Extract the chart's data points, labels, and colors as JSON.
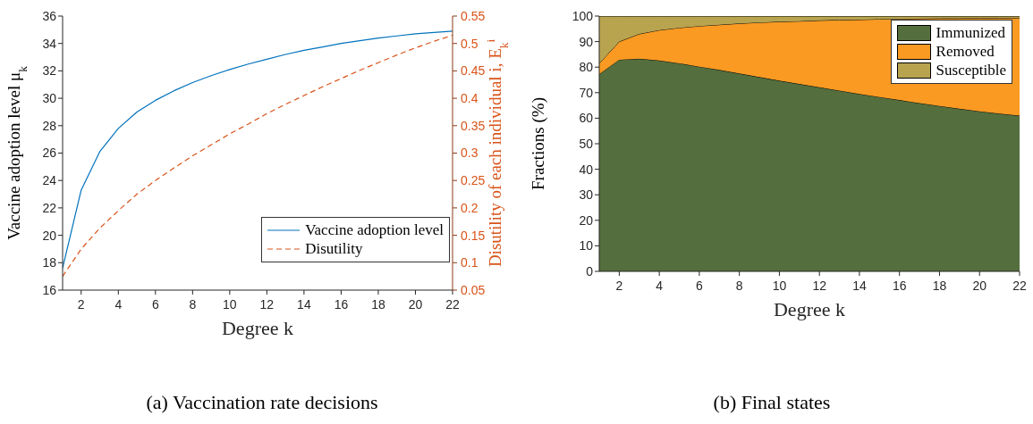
{
  "chart_data": [
    {
      "type": "line",
      "title": "(a) Vaccination rate decisions",
      "xlabel": "Degree k",
      "ylabel": "Vaccine adoption level μ$_{k}$",
      "y2label": "Disutility of each individual i, E$_{k}$$^{i}$",
      "x": [
        1,
        2,
        3,
        4,
        5,
        6,
        7,
        8,
        9,
        10,
        11,
        12,
        13,
        14,
        15,
        16,
        17,
        18,
        19,
        20,
        21,
        22
      ],
      "series": [
        {
          "name": "Vaccine adoption level",
          "color": "#0072bd",
          "line_style": "solid",
          "values": [
            17.6,
            23.3,
            26.1,
            27.8,
            29.0,
            29.85,
            30.55,
            31.15,
            31.65,
            32.1,
            32.5,
            32.85,
            33.2,
            33.5,
            33.75,
            34.0,
            34.2,
            34.4,
            34.55,
            34.7,
            34.8,
            34.9
          ]
        },
        {
          "name": "Disutility",
          "color": "#d95319",
          "line_style": "dashed",
          "axis": "y2",
          "values": [
            0.075,
            0.125,
            0.163,
            0.195,
            0.225,
            0.25,
            0.273,
            0.295,
            0.315,
            0.335,
            0.353,
            0.372,
            0.389,
            0.405,
            0.421,
            0.436,
            0.451,
            0.465,
            0.479,
            0.492,
            0.504,
            0.515
          ]
        }
      ],
      "xlim": [
        1,
        22
      ],
      "xticks": [
        2,
        4,
        6,
        8,
        10,
        12,
        14,
        16,
        18,
        20,
        22
      ],
      "ylim": [
        16,
        36
      ],
      "yticks": [
        16,
        18,
        20,
        22,
        24,
        26,
        28,
        30,
        32,
        34,
        36
      ],
      "y2lim": [
        0.05,
        0.55
      ],
      "y2ticks": [
        0.05,
        0.1,
        0.15,
        0.2,
        0.25,
        0.3,
        0.35,
        0.4,
        0.45,
        0.5,
        0.55
      ],
      "grid": false,
      "legend": "right",
      "marker": "none"
    },
    {
      "type": "area",
      "title": "(b) Final states",
      "xlabel": "Degree k",
      "ylabel": "Fractions (%)",
      "stacked": true,
      "x": [
        1,
        2,
        3,
        4,
        5,
        6,
        7,
        8,
        9,
        10,
        11,
        12,
        13,
        14,
        15,
        16,
        17,
        18,
        19,
        20,
        21,
        22
      ],
      "series": [
        {
          "name": "Immunized",
          "color": "#546e3d",
          "values": [
            77.3,
            82.9,
            83.3,
            82.6,
            81.5,
            80.2,
            78.9,
            77.5,
            76.1,
            74.7,
            73.4,
            72.1,
            70.8,
            69.5,
            68.3,
            67.1,
            65.9,
            64.8,
            63.7,
            62.7,
            61.8,
            61.0
          ]
        },
        {
          "name": "Removed",
          "color": "#fa9a22",
          "values": [
            4.2,
            7.1,
            9.7,
            11.9,
            13.9,
            15.9,
            17.7,
            19.6,
            21.4,
            23.1,
            24.6,
            26.2,
            27.7,
            29.1,
            30.5,
            31.8,
            33.1,
            34.3,
            35.4,
            36.5,
            37.4,
            38.3
          ]
        },
        {
          "name": "Susceptible",
          "color": "#b8a44f",
          "values": [
            18.5,
            10,
            7,
            5.5,
            4.6,
            3.9,
            3.4,
            2.9,
            2.5,
            2.2,
            2.0,
            1.7,
            1.5,
            1.4,
            1.2,
            1.1,
            1.0,
            0.9,
            0.9,
            0.8,
            0.8,
            0.7
          ]
        }
      ],
      "xlim": [
        1,
        22
      ],
      "xticks": [
        2,
        4,
        6,
        8,
        10,
        12,
        14,
        16,
        18,
        20,
        22
      ],
      "ylim": [
        0,
        100
      ],
      "yticks": [
        0,
        10,
        20,
        30,
        40,
        50,
        60,
        70,
        80,
        90,
        100
      ],
      "grid": false,
      "legend": "top right"
    }
  ]
}
